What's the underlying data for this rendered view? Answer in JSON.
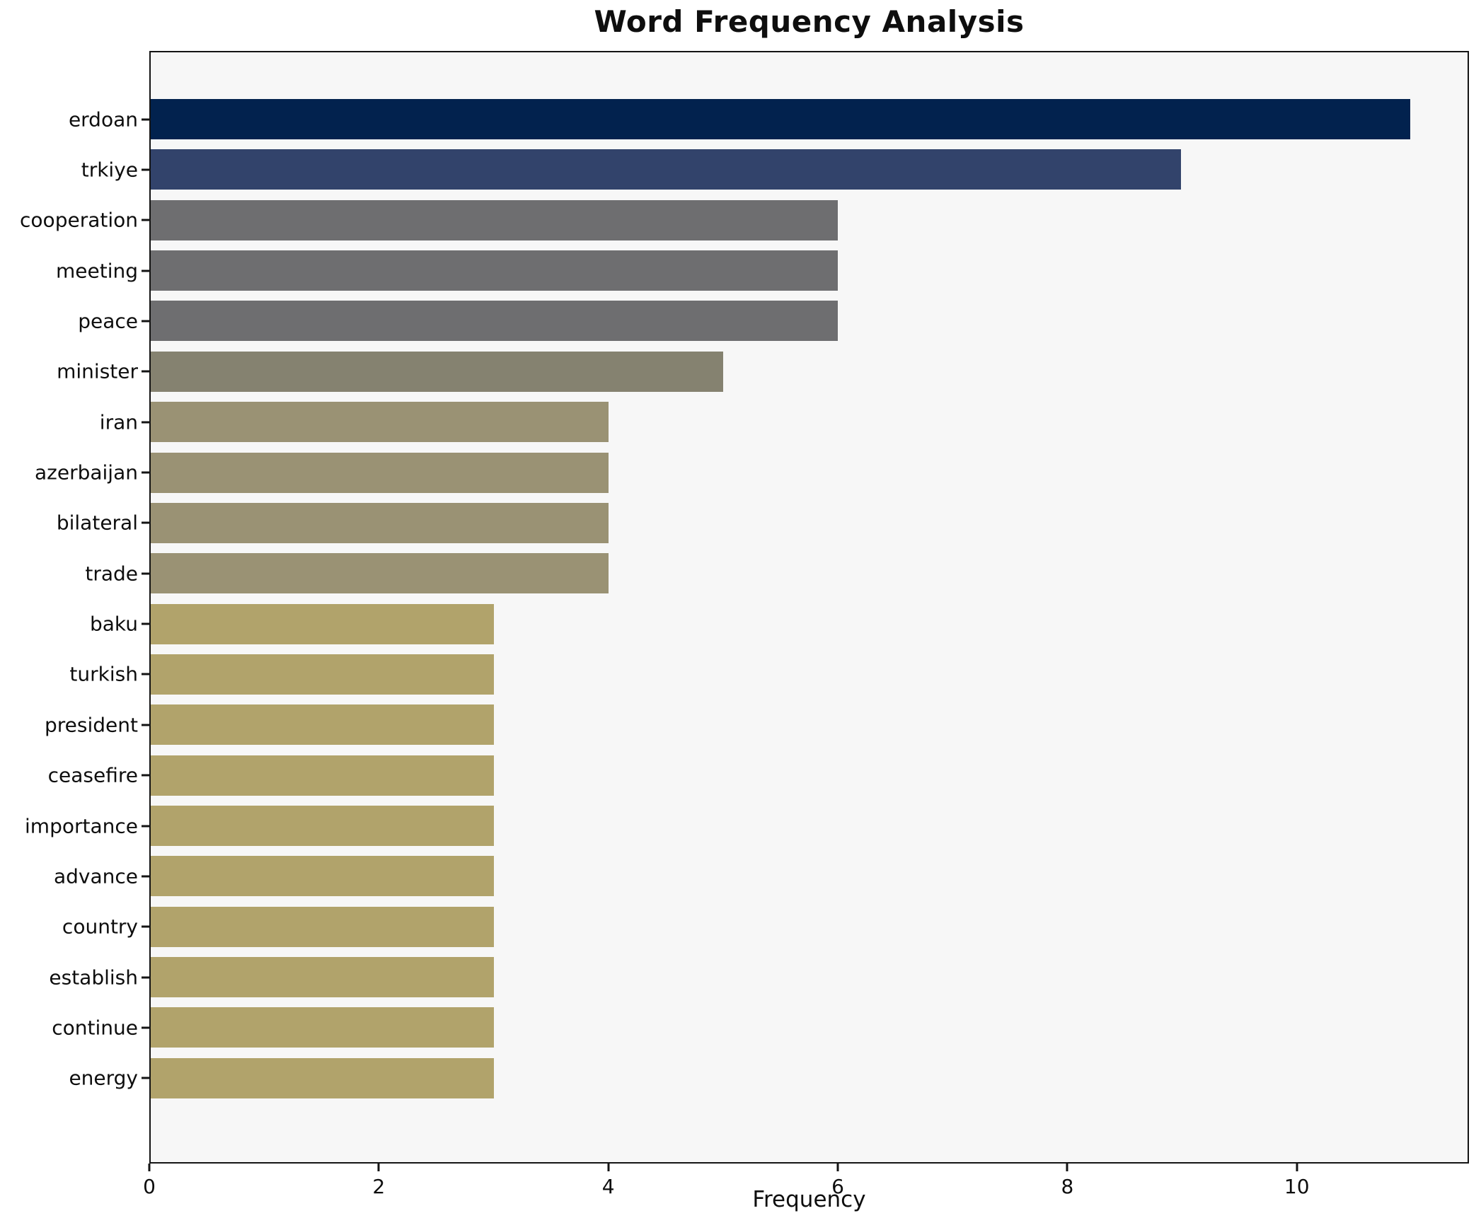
{
  "chart_data": {
    "type": "bar",
    "orientation": "horizontal",
    "title": "Word Frequency Analysis",
    "xlabel": "Frequency",
    "ylabel": "",
    "xlim": [
      0,
      11.5
    ],
    "xticks": [
      0,
      2,
      4,
      6,
      8,
      10
    ],
    "grid": false,
    "legend": null,
    "categories": [
      "erdoan",
      "trkiye",
      "cooperation",
      "meeting",
      "peace",
      "minister",
      "iran",
      "azerbaijan",
      "bilateral",
      "trade",
      "baku",
      "turkish",
      "president",
      "ceasefire",
      "importance",
      "advance",
      "country",
      "establish",
      "continue",
      "energy"
    ],
    "values": [
      11,
      9,
      6,
      6,
      6,
      5,
      4,
      4,
      4,
      4,
      3,
      3,
      3,
      3,
      3,
      3,
      3,
      3,
      3,
      3
    ],
    "series": [
      {
        "word": "erdoan",
        "value": 11,
        "color": "#02224e"
      },
      {
        "word": "trkiye",
        "value": 9,
        "color": "#32436b"
      },
      {
        "word": "cooperation",
        "value": 6,
        "color": "#6e6e70"
      },
      {
        "word": "meeting",
        "value": 6,
        "color": "#6e6e70"
      },
      {
        "word": "peace",
        "value": 6,
        "color": "#6e6e70"
      },
      {
        "word": "minister",
        "value": 5,
        "color": "#858270"
      },
      {
        "word": "iran",
        "value": 4,
        "color": "#9a9274"
      },
      {
        "word": "azerbaijan",
        "value": 4,
        "color": "#9a9274"
      },
      {
        "word": "bilateral",
        "value": 4,
        "color": "#9a9274"
      },
      {
        "word": "trade",
        "value": 4,
        "color": "#9a9274"
      },
      {
        "word": "baku",
        "value": 3,
        "color": "#b1a36b"
      },
      {
        "word": "turkish",
        "value": 3,
        "color": "#b1a36b"
      },
      {
        "word": "president",
        "value": 3,
        "color": "#b1a36b"
      },
      {
        "word": "ceasefire",
        "value": 3,
        "color": "#b1a36b"
      },
      {
        "word": "importance",
        "value": 3,
        "color": "#b1a36b"
      },
      {
        "word": "advance",
        "value": 3,
        "color": "#b1a36b"
      },
      {
        "word": "country",
        "value": 3,
        "color": "#b1a36b"
      },
      {
        "word": "establish",
        "value": 3,
        "color": "#b1a36b"
      },
      {
        "word": "continue",
        "value": 3,
        "color": "#b1a36b"
      },
      {
        "word": "energy",
        "value": 3,
        "color": "#b1a36b"
      }
    ]
  },
  "styles": {
    "figure_bg": "#ffffff",
    "plot_bg": "#f7f7f7",
    "spine_color": "#141414",
    "text_color": "#0e0e0e"
  }
}
